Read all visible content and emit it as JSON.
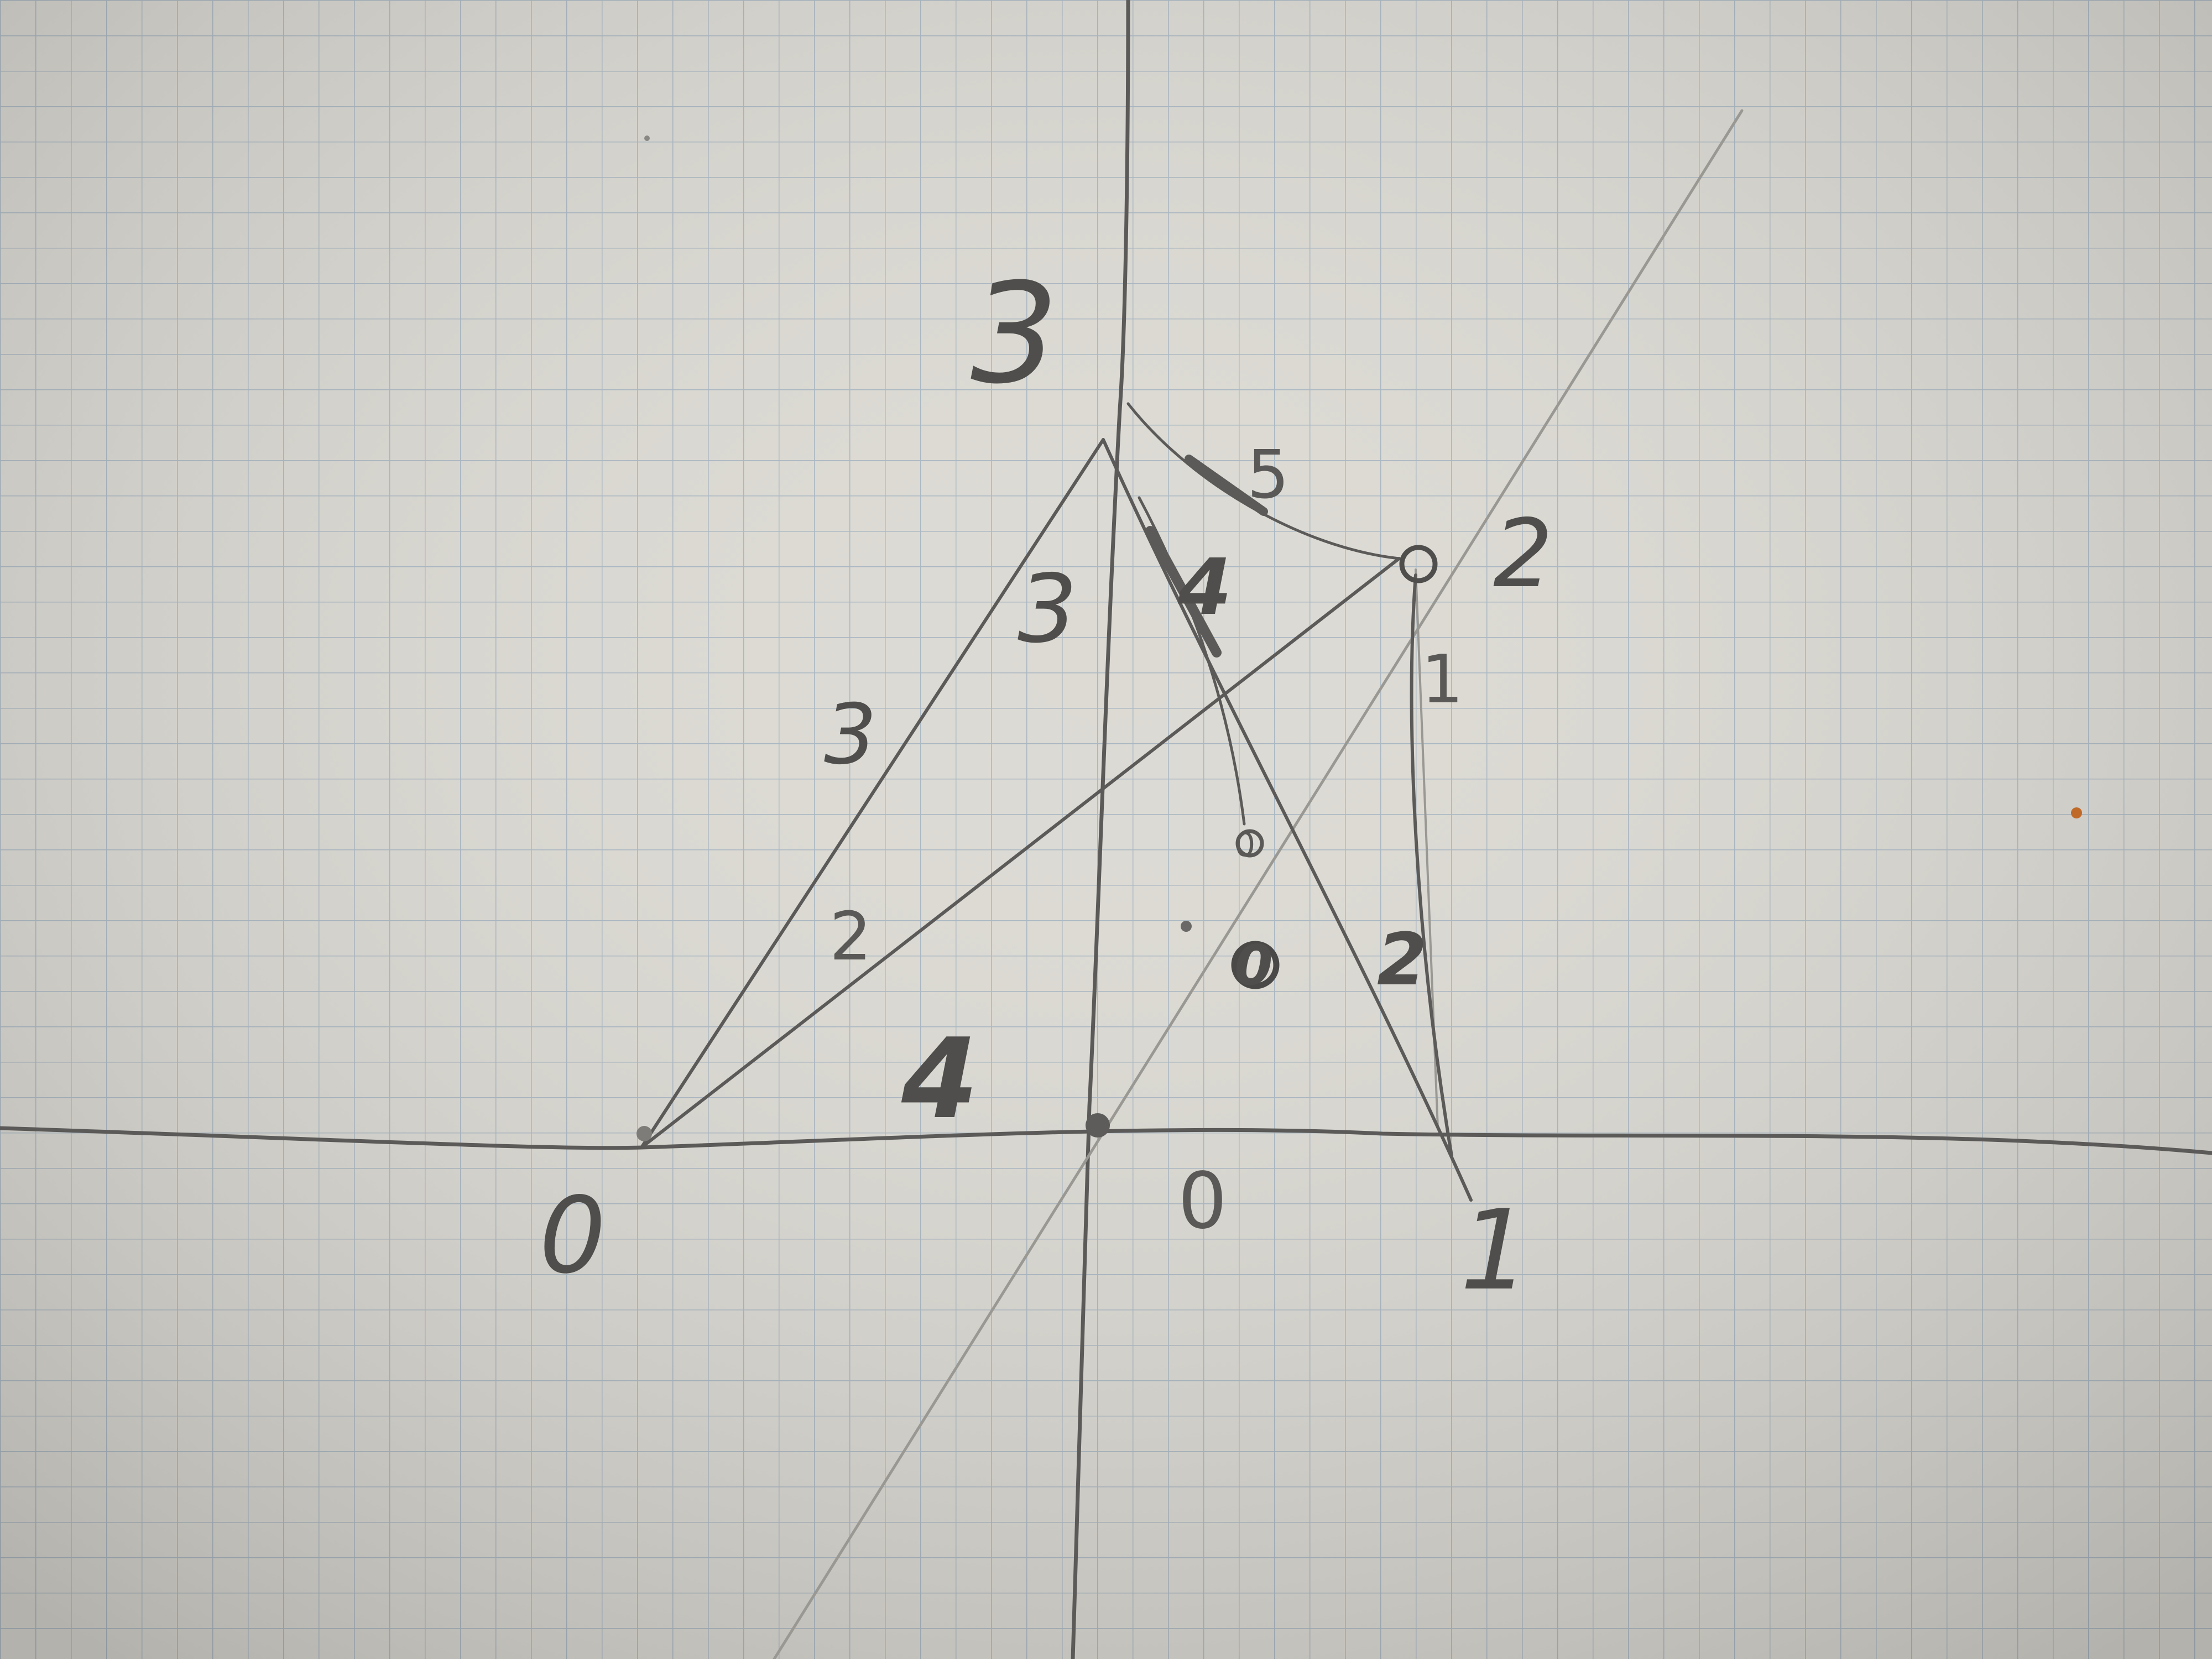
{
  "sketch": {
    "labels": {
      "top_axis": "3",
      "left_edge_upper": "3",
      "left_edge_mid": "3",
      "left_edge_lower": "2",
      "base_left_mark": "4",
      "vertex_left": "0",
      "under_origin": "0",
      "vertex_right": "1",
      "vertex_upper_right": "2",
      "right_edge_upper": "1",
      "right_edge_lower": "2",
      "top_curve": "5",
      "center_stroke": "4",
      "inner_small": "0",
      "inner_circled": "0"
    }
  }
}
